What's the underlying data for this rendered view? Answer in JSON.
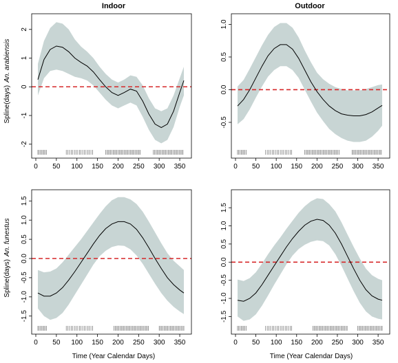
{
  "figure": {
    "col_titles": [
      "Indoor",
      "Outdoor"
    ],
    "xlabel": "Time (Year Calendar Days)",
    "ylabel_prefix": "Spline(days)",
    "row_species": [
      "An. arabiensis",
      "An. funestus"
    ],
    "colors": {
      "band": "#c8d5d4",
      "line": "#000000",
      "zero_line": "#d62728",
      "rug": "#555555"
    }
  },
  "chart_data": [
    {
      "type": "line",
      "title": "Indoor",
      "species": "An. arabiensis",
      "xlim": [
        0,
        365
      ],
      "ylim": [
        -2.15,
        2.45
      ],
      "xticks": [
        0,
        50,
        100,
        150,
        200,
        250,
        300,
        350
      ],
      "yticks": [
        -2,
        -1,
        0,
        1,
        2
      ],
      "x": [
        5,
        20,
        35,
        50,
        65,
        80,
        95,
        110,
        125,
        140,
        155,
        170,
        185,
        200,
        215,
        230,
        245,
        260,
        275,
        290,
        305,
        320,
        335,
        350,
        360
      ],
      "fit": [
        0.25,
        0.95,
        1.3,
        1.42,
        1.38,
        1.22,
        1.0,
        0.85,
        0.72,
        0.52,
        0.25,
        0.0,
        -0.2,
        -0.3,
        -0.2,
        -0.08,
        -0.15,
        -0.5,
        -0.95,
        -1.3,
        -1.42,
        -1.3,
        -0.85,
        -0.2,
        0.22
      ],
      "lower": [
        -0.3,
        0.3,
        0.55,
        0.6,
        0.55,
        0.45,
        0.35,
        0.3,
        0.22,
        0.05,
        -0.2,
        -0.45,
        -0.65,
        -0.75,
        -0.65,
        -0.55,
        -0.65,
        -1.05,
        -1.5,
        -1.85,
        -1.97,
        -1.85,
        -1.4,
        -0.7,
        -0.3
      ],
      "upper": [
        0.8,
        1.6,
        2.05,
        2.25,
        2.2,
        2.0,
        1.65,
        1.4,
        1.22,
        1.0,
        0.7,
        0.45,
        0.25,
        0.15,
        0.25,
        0.4,
        0.35,
        0.05,
        -0.4,
        -0.75,
        -0.85,
        -0.75,
        -0.3,
        0.3,
        0.7
      ],
      "zero_line": 0,
      "rug": [
        5,
        8,
        11,
        14,
        17,
        20,
        23,
        26,
        74,
        78,
        82,
        86,
        90,
        94,
        98,
        102,
        106,
        110,
        114,
        118,
        122,
        126,
        130,
        134,
        138,
        170,
        173,
        176,
        179,
        182,
        185,
        188,
        191,
        194,
        197,
        200,
        203,
        206,
        209,
        212,
        215,
        218,
        221,
        224,
        227,
        230,
        233,
        236,
        239,
        242,
        245,
        248,
        251,
        254,
        286,
        289,
        292,
        295,
        298,
        301,
        304,
        307,
        310,
        313,
        316,
        319,
        322,
        325,
        328,
        331,
        334,
        337,
        340,
        343,
        346,
        349,
        352,
        355,
        358
      ]
    },
    {
      "type": "line",
      "title": "Outdoor",
      "species": "An. arabiensis",
      "xlim": [
        0,
        365
      ],
      "ylim": [
        -0.9,
        1.12
      ],
      "xticks": [
        0,
        50,
        100,
        150,
        200,
        250,
        300,
        350
      ],
      "yticks": [
        -0.5,
        0.0,
        0.5,
        1.0
      ],
      "x": [
        5,
        20,
        35,
        50,
        65,
        80,
        95,
        110,
        125,
        140,
        155,
        170,
        185,
        200,
        215,
        230,
        245,
        260,
        275,
        290,
        305,
        320,
        335,
        350,
        360
      ],
      "fit": [
        -0.25,
        -0.15,
        0.0,
        0.18,
        0.36,
        0.52,
        0.63,
        0.69,
        0.69,
        0.62,
        0.48,
        0.3,
        0.12,
        -0.03,
        -0.15,
        -0.25,
        -0.32,
        -0.37,
        -0.39,
        -0.4,
        -0.4,
        -0.38,
        -0.34,
        -0.28,
        -0.24
      ],
      "lower": [
        -0.53,
        -0.45,
        -0.3,
        -0.12,
        0.05,
        0.2,
        0.3,
        0.36,
        0.36,
        0.3,
        0.18,
        0.0,
        -0.18,
        -0.35,
        -0.48,
        -0.6,
        -0.68,
        -0.74,
        -0.78,
        -0.8,
        -0.8,
        -0.78,
        -0.72,
        -0.63,
        -0.55
      ],
      "upper": [
        0.05,
        0.15,
        0.32,
        0.5,
        0.68,
        0.84,
        0.96,
        1.02,
        1.02,
        0.95,
        0.8,
        0.6,
        0.42,
        0.26,
        0.16,
        0.09,
        0.04,
        0.01,
        -0.01,
        -0.01,
        -0.01,
        0.01,
        0.04,
        0.07,
        0.08
      ],
      "zero_line": 0,
      "rug": [
        5,
        8,
        11,
        14,
        17,
        20,
        23,
        26,
        74,
        78,
        82,
        86,
        90,
        94,
        98,
        102,
        106,
        110,
        114,
        118,
        122,
        126,
        130,
        134,
        138,
        170,
        173,
        176,
        179,
        182,
        185,
        188,
        191,
        194,
        197,
        200,
        203,
        206,
        209,
        212,
        215,
        218,
        221,
        224,
        227,
        230,
        233,
        236,
        239,
        242,
        245,
        248,
        251,
        254,
        286,
        289,
        292,
        295,
        298,
        301,
        304,
        307,
        310,
        313,
        316,
        319,
        322,
        325,
        328,
        331,
        334,
        337,
        340,
        343,
        346,
        349,
        352,
        355,
        358
      ]
    },
    {
      "type": "line",
      "title": "Indoor",
      "species": "An. funestus",
      "xlim": [
        0,
        365
      ],
      "ylim": [
        -1.72,
        1.72
      ],
      "xticks": [
        0,
        50,
        100,
        150,
        200,
        250,
        300,
        350
      ],
      "yticks": [
        -1.5,
        -1.0,
        -0.5,
        0.0,
        0.5,
        1.0,
        1.5
      ],
      "x": [
        5,
        20,
        35,
        50,
        65,
        80,
        95,
        110,
        125,
        140,
        155,
        170,
        185,
        200,
        215,
        230,
        245,
        260,
        275,
        290,
        305,
        320,
        335,
        350,
        360
      ],
      "fit": [
        -0.9,
        -0.98,
        -0.98,
        -0.9,
        -0.76,
        -0.56,
        -0.34,
        -0.1,
        0.14,
        0.38,
        0.6,
        0.78,
        0.9,
        0.96,
        0.96,
        0.9,
        0.76,
        0.54,
        0.28,
        0.0,
        -0.26,
        -0.5,
        -0.68,
        -0.82,
        -0.9
      ],
      "lower": [
        -1.3,
        -1.5,
        -1.6,
        -1.55,
        -1.42,
        -1.2,
        -0.94,
        -0.68,
        -0.42,
        -0.16,
        0.06,
        0.2,
        0.3,
        0.34,
        0.33,
        0.24,
        0.08,
        -0.14,
        -0.4,
        -0.66,
        -0.9,
        -1.1,
        -1.26,
        -1.38,
        -1.45
      ],
      "upper": [
        -0.3,
        -0.36,
        -0.34,
        -0.26,
        -0.1,
        0.1,
        0.3,
        0.5,
        0.72,
        0.94,
        1.16,
        1.36,
        1.52,
        1.6,
        1.6,
        1.54,
        1.42,
        1.22,
        0.96,
        0.68,
        0.4,
        0.14,
        -0.06,
        -0.2,
        -0.3
      ],
      "zero_line": 0,
      "rug": [
        5,
        8,
        11,
        14,
        17,
        20,
        23,
        26,
        74,
        78,
        82,
        86,
        90,
        94,
        98,
        102,
        106,
        110,
        114,
        118,
        122,
        126,
        130,
        134,
        138,
        190,
        193,
        196,
        199,
        202,
        205,
        208,
        211,
        214,
        217,
        220,
        223,
        226,
        229,
        232,
        235,
        238,
        241,
        244,
        247,
        250,
        253,
        256,
        259,
        262,
        265,
        268,
        271,
        274,
        300,
        303,
        306,
        309,
        312,
        315,
        318,
        321,
        324,
        327,
        330,
        333,
        336,
        339,
        342,
        345,
        348,
        351,
        354,
        357,
        360
      ]
    },
    {
      "type": "line",
      "title": "Outdoor",
      "species": "An. funestus",
      "xlim": [
        0,
        365
      ],
      "ylim": [
        -1.72,
        1.92
      ],
      "xticks": [
        0,
        50,
        100,
        150,
        200,
        250,
        300,
        350
      ],
      "yticks": [
        -1.5,
        -1.0,
        -0.5,
        0.0,
        0.5,
        1.0,
        1.5
      ],
      "x": [
        5,
        20,
        35,
        50,
        65,
        80,
        95,
        110,
        125,
        140,
        155,
        170,
        185,
        200,
        215,
        230,
        245,
        260,
        275,
        290,
        305,
        320,
        335,
        350,
        360
      ],
      "fit": [
        -1.05,
        -1.08,
        -1.0,
        -0.85,
        -0.62,
        -0.36,
        -0.1,
        0.16,
        0.42,
        0.65,
        0.85,
        1.02,
        1.13,
        1.18,
        1.15,
        1.02,
        0.8,
        0.5,
        0.16,
        -0.18,
        -0.5,
        -0.76,
        -0.93,
        -1.02,
        -1.05
      ],
      "lower": [
        -1.5,
        -1.62,
        -1.58,
        -1.44,
        -1.2,
        -0.92,
        -0.62,
        -0.34,
        -0.06,
        0.18,
        0.36,
        0.48,
        0.56,
        0.6,
        0.58,
        0.46,
        0.22,
        -0.1,
        -0.45,
        -0.8,
        -1.12,
        -1.36,
        -1.5,
        -1.56,
        -1.58
      ],
      "upper": [
        -0.48,
        -0.52,
        -0.44,
        -0.28,
        -0.04,
        0.22,
        0.46,
        0.68,
        0.92,
        1.14,
        1.36,
        1.54,
        1.68,
        1.76,
        1.74,
        1.6,
        1.4,
        1.1,
        0.76,
        0.42,
        0.1,
        -0.18,
        -0.36,
        -0.46,
        -0.5
      ],
      "zero_line": 0,
      "rug": [
        5,
        8,
        11,
        14,
        17,
        20,
        23,
        26,
        74,
        78,
        82,
        86,
        90,
        94,
        98,
        102,
        106,
        110,
        114,
        118,
        122,
        126,
        130,
        134,
        138,
        190,
        193,
        196,
        199,
        202,
        205,
        208,
        211,
        214,
        217,
        220,
        223,
        226,
        229,
        232,
        235,
        238,
        241,
        244,
        247,
        250,
        253,
        256,
        259,
        262,
        265,
        268,
        271,
        274,
        300,
        303,
        306,
        309,
        312,
        315,
        318,
        321,
        324,
        327,
        330,
        333,
        336,
        339,
        342,
        345,
        348,
        351,
        354,
        357,
        360
      ]
    }
  ]
}
